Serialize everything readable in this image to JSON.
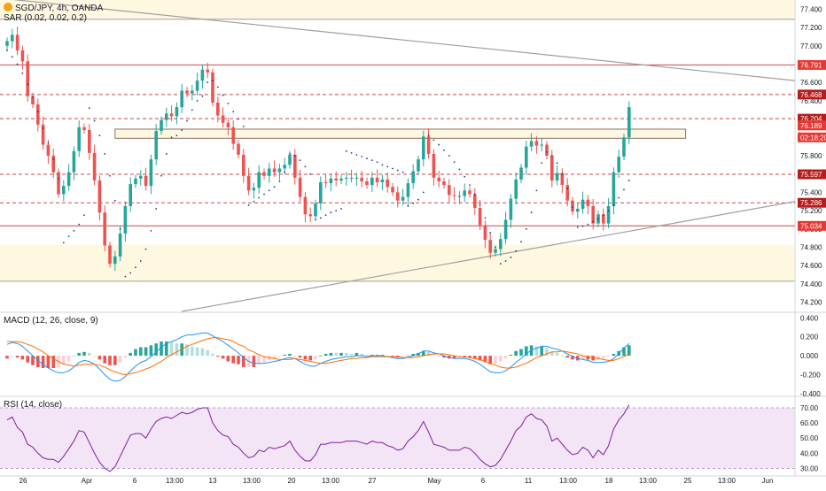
{
  "header": {
    "symbol": "SGD/JPY, 4h, OANDA",
    "sar_label": "SAR (0.02, 0.02, 0.2)",
    "macd_label": "MACD (12, 26, close, 9)",
    "rsi_label": "RSI (14, close)"
  },
  "colors": {
    "up": "#26a69a",
    "down": "#ef5350",
    "sar": "#1e3a8a",
    "macd_line": "#2196f3",
    "signal_line": "#ff6d00",
    "rsi_line": "#7b1fa2",
    "rsi_band": "#f3e5f5",
    "zone_fill": "#fff8e1",
    "red_level": "#c62828",
    "badge_dark": "#b71c1c",
    "badge_red": "#e53935",
    "trendline": "#9e9e9e"
  },
  "chart_data": [
    {
      "type": "candlestick",
      "panel": "price",
      "symbol": "SGD/JPY",
      "timeframe": "4h",
      "ylim": [
        74.1,
        77.5
      ],
      "y_ticks": [
        "77.400",
        "77.200",
        "77.000",
        "76.800",
        "76.600",
        "76.400",
        "76.200",
        "76.000",
        "75.800",
        "75.600",
        "75.400",
        "75.200",
        "75.000",
        "74.800",
        "74.600",
        "74.400",
        "74.200"
      ],
      "x_ticks": [
        "26",
        "Apr",
        "6",
        "13:00",
        "13",
        "13:00",
        "20",
        "13:00",
        "27",
        "May",
        "6",
        "11",
        "13:00",
        "18",
        "13:00",
        "25",
        "13:00",
        "Jun"
      ],
      "close": [
        77.05,
        77.12,
        76.95,
        76.83,
        76.45,
        76.36,
        76.14,
        75.92,
        75.8,
        75.62,
        75.38,
        75.47,
        75.62,
        75.85,
        76.11,
        76.08,
        75.83,
        75.53,
        75.18,
        74.82,
        74.62,
        74.7,
        74.95,
        75.25,
        75.49,
        75.55,
        75.58,
        75.47,
        75.76,
        76.07,
        76.19,
        76.26,
        76.23,
        76.33,
        76.51,
        76.48,
        76.51,
        76.62,
        76.74,
        76.71,
        76.38,
        76.24,
        76.16,
        76.11,
        75.93,
        75.81,
        75.58,
        75.42,
        75.45,
        75.62,
        75.58,
        75.66,
        75.62,
        75.66,
        75.7,
        75.81,
        75.56,
        75.35,
        75.16,
        75.14,
        75.28,
        75.51,
        75.5,
        75.55,
        75.53,
        75.55,
        75.56,
        75.56,
        75.56,
        75.52,
        75.48,
        75.56,
        75.51,
        75.54,
        75.46,
        75.4,
        75.31,
        75.35,
        75.5,
        75.63,
        75.76,
        76.01,
        75.82,
        75.56,
        75.52,
        75.48,
        75.37,
        75.36,
        75.36,
        75.42,
        75.38,
        75.23,
        75.04,
        74.88,
        74.74,
        74.78,
        74.89,
        75.1,
        75.33,
        75.54,
        75.67,
        75.9,
        75.96,
        75.91,
        75.92,
        75.8,
        75.53,
        75.61,
        75.48,
        75.31,
        75.19,
        75.22,
        75.32,
        75.25,
        75.06,
        75.16,
        75.06,
        75.25,
        75.62,
        75.79,
        76.0,
        76.33
      ],
      "series": [
        {
          "name": "SAR",
          "values": [
            76.95,
            76.88,
            76.8,
            76.7,
            76.58,
            76.44,
            76.28,
            76.1,
            75.94,
            75.76,
            75.55,
            74.85,
            74.92,
            74.98,
            75.05,
            75.15,
            76.32,
            76.18,
            76.02,
            75.82,
            75.58,
            75.31,
            75.0,
            74.48,
            74.52,
            74.58,
            74.65,
            74.78,
            74.98,
            75.22,
            75.58,
            75.82,
            76.0,
            76.02,
            76.08,
            76.18,
            76.3,
            76.4,
            76.45,
            76.6,
            76.62,
            76.55,
            76.46,
            76.37,
            76.28,
            76.2,
            76.12,
            75.26,
            75.3,
            75.34,
            75.38,
            75.42,
            75.46,
            75.52,
            75.62,
            75.82,
            75.8,
            75.75,
            75.68,
            75.6,
            75.1,
            75.12,
            75.15,
            75.18,
            75.2,
            75.22,
            75.85,
            75.83,
            75.81,
            75.79,
            75.77,
            75.75,
            75.73,
            75.7,
            75.68,
            75.66,
            75.64,
            75.62,
            75.25,
            75.28,
            75.32,
            75.4,
            76.02,
            75.97,
            75.92,
            75.86,
            75.8,
            75.73,
            75.65,
            75.57,
            75.48,
            75.38,
            75.26,
            75.12,
            74.96,
            74.8,
            74.62,
            74.65,
            74.69,
            74.76,
            74.86,
            75.0,
            75.18,
            75.42,
            75.72,
            75.84,
            75.8,
            75.72,
            75.6,
            75.44,
            75.24,
            75.02,
            75.03,
            75.05,
            75.08,
            75.11,
            75.15,
            75.2,
            75.26,
            75.34,
            75.43,
            75.53
          ]
        },
        {
          "name": "MACD",
          "values": [
            0.12,
            0.14,
            0.13,
            0.1,
            0.05,
            0.0,
            -0.05,
            -0.09,
            -0.13,
            -0.16,
            -0.18,
            -0.18,
            -0.16,
            -0.12,
            -0.07,
            -0.05,
            -0.06,
            -0.09,
            -0.14,
            -0.2,
            -0.25,
            -0.27,
            -0.26,
            -0.22,
            -0.16,
            -0.11,
            -0.07,
            -0.05,
            -0.01,
            0.04,
            0.09,
            0.13,
            0.15,
            0.17,
            0.2,
            0.22,
            0.22,
            0.23,
            0.24,
            0.24,
            0.21,
            0.18,
            0.15,
            0.11,
            0.07,
            0.03,
            -0.02,
            -0.06,
            -0.08,
            -0.08,
            -0.08,
            -0.07,
            -0.06,
            -0.05,
            -0.03,
            -0.02,
            -0.03,
            -0.06,
            -0.09,
            -0.11,
            -0.11,
            -0.08,
            -0.06,
            -0.04,
            -0.03,
            -0.02,
            -0.01,
            -0.01,
            0.0,
            0.0,
            -0.01,
            0.0,
            0.0,
            0.0,
            -0.01,
            -0.02,
            -0.03,
            -0.03,
            -0.02,
            0.0,
            0.02,
            0.05,
            0.05,
            0.03,
            0.02,
            0.0,
            -0.02,
            -0.03,
            -0.03,
            -0.03,
            -0.04,
            -0.06,
            -0.09,
            -0.13,
            -0.17,
            -0.18,
            -0.18,
            -0.16,
            -0.12,
            -0.07,
            -0.03,
            0.02,
            0.06,
            0.08,
            0.1,
            0.1,
            0.08,
            0.07,
            0.05,
            0.02,
            -0.01,
            -0.03,
            -0.04,
            -0.05,
            -0.07,
            -0.07,
            -0.07,
            -0.06,
            -0.03,
            0.02,
            0.08,
            0.13
          ]
        },
        {
          "name": "Signal",
          "values": [
            0.15,
            0.15,
            0.15,
            0.14,
            0.12,
            0.1,
            0.07,
            0.04,
            0.0,
            -0.03,
            -0.06,
            -0.09,
            -0.1,
            -0.11,
            -0.1,
            -0.09,
            -0.09,
            -0.09,
            -0.1,
            -0.12,
            -0.15,
            -0.17,
            -0.19,
            -0.2,
            -0.19,
            -0.18,
            -0.16,
            -0.14,
            -0.12,
            -0.09,
            -0.06,
            -0.02,
            0.01,
            0.04,
            0.07,
            0.1,
            0.12,
            0.14,
            0.16,
            0.18,
            0.19,
            0.19,
            0.18,
            0.17,
            0.15,
            0.12,
            0.1,
            0.06,
            0.04,
            0.01,
            -0.01,
            -0.02,
            -0.03,
            -0.04,
            -0.04,
            -0.04,
            -0.03,
            -0.04,
            -0.05,
            -0.06,
            -0.07,
            -0.08,
            -0.08,
            -0.07,
            -0.06,
            -0.05,
            -0.04,
            -0.03,
            -0.03,
            -0.02,
            -0.02,
            -0.01,
            -0.01,
            -0.01,
            -0.01,
            -0.01,
            -0.01,
            -0.02,
            -0.02,
            -0.02,
            -0.01,
            0.0,
            0.01,
            0.02,
            0.02,
            0.02,
            0.01,
            0.0,
            -0.01,
            -0.01,
            -0.02,
            -0.03,
            -0.04,
            -0.06,
            -0.08,
            -0.1,
            -0.12,
            -0.13,
            -0.13,
            -0.12,
            -0.1,
            -0.08,
            -0.05,
            -0.02,
            0.0,
            0.02,
            0.04,
            0.04,
            0.05,
            0.04,
            0.03,
            0.02,
            0.0,
            -0.01,
            -0.02,
            -0.03,
            -0.04,
            -0.05,
            -0.05,
            -0.03,
            -0.01,
            0.02
          ]
        },
        {
          "name": "RSI",
          "values": [
            62,
            64,
            57,
            54,
            46,
            44,
            40,
            37,
            36,
            36,
            34,
            38,
            43,
            48,
            55,
            54,
            47,
            40,
            34,
            30,
            28,
            31,
            38,
            45,
            52,
            53,
            53,
            50,
            56,
            61,
            63,
            64,
            63,
            65,
            67,
            66,
            67,
            69,
            70,
            70,
            60,
            55,
            52,
            51,
            46,
            44,
            40,
            37,
            38,
            42,
            41,
            44,
            43,
            44,
            45,
            48,
            42,
            38,
            35,
            35,
            39,
            46,
            46,
            47,
            47,
            47,
            48,
            48,
            48,
            47,
            46,
            48,
            47,
            47,
            45,
            44,
            42,
            43,
            48,
            51,
            55,
            61,
            54,
            46,
            45,
            44,
            42,
            42,
            42,
            44,
            43,
            40,
            36,
            33,
            31,
            32,
            36,
            42,
            48,
            55,
            58,
            64,
            66,
            63,
            62,
            58,
            48,
            50,
            46,
            42,
            39,
            40,
            44,
            42,
            37,
            42,
            39,
            45,
            56,
            62,
            66,
            72
          ]
        }
      ]
    },
    {
      "type": "macd",
      "panel": "macd",
      "ylim": [
        -0.42,
        0.45
      ],
      "y_ticks": [
        "0.400",
        "0.200",
        "0.000",
        "-0.200",
        "-0.400"
      ]
    },
    {
      "type": "rsi",
      "panel": "rsi",
      "ylim": [
        25,
        77
      ],
      "band": [
        30,
        70
      ],
      "y_ticks": [
        "70.00",
        "60.00",
        "50.00",
        "40.00",
        "30.00"
      ]
    }
  ],
  "annotations": {
    "badges": [
      {
        "label": "76.791",
        "price": 76.791,
        "style": "red"
      },
      {
        "label": "76.468",
        "price": 76.468,
        "style": "dark"
      },
      {
        "label": "76.204",
        "price": 76.204,
        "style": "dark"
      },
      {
        "label": "76.189",
        "price": 76.13,
        "style": "red"
      },
      {
        "label": "02:18:20",
        "price": 76.0,
        "style": "red"
      },
      {
        "label": "75.597",
        "price": 75.597,
        "style": "dark"
      },
      {
        "label": "75.286",
        "price": 75.286,
        "style": "dark"
      },
      {
        "label": "75.034",
        "price": 75.034,
        "style": "red"
      }
    ],
    "levels": [
      {
        "price": 76.791,
        "style": "solid"
      },
      {
        "price": 76.468,
        "style": "dashed"
      },
      {
        "price": 76.204,
        "style": "dashed"
      },
      {
        "price": 75.597,
        "style": "dashed"
      },
      {
        "price": 75.286,
        "style": "dashed"
      },
      {
        "price": 75.034,
        "style": "solid"
      }
    ],
    "zones": [
      {
        "top": 77.5,
        "bottom": 77.29
      },
      {
        "top": 74.83,
        "bottom": 74.43
      }
    ],
    "rectangle": {
      "top": 76.09,
      "bottom": 75.99
    }
  }
}
